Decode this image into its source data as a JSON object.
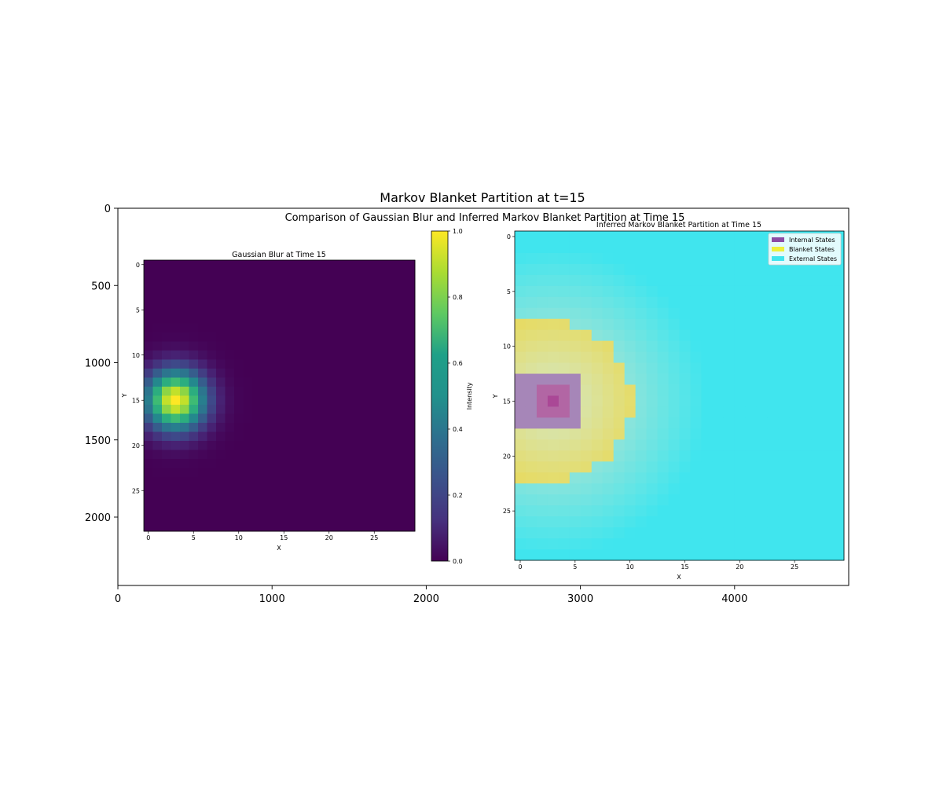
{
  "outer": {
    "title": "Markov Blanket Partition at t=15",
    "x_ticks": [
      "0",
      "1000",
      "2000",
      "3000",
      "4000"
    ],
    "y_ticks": [
      "0",
      "500",
      "1000",
      "1500",
      "2000"
    ]
  },
  "figure": {
    "suptitle": "Comparison of Gaussian Blur and Inferred Markov Blanket Partition at Time 15"
  },
  "left_panel": {
    "title": "Gaussian Blur at Time 15",
    "xlabel": "X",
    "ylabel": "Y",
    "x_ticks": [
      "0",
      "5",
      "10",
      "15",
      "20",
      "25"
    ],
    "y_ticks": [
      "0",
      "5",
      "10",
      "15",
      "20",
      "25"
    ]
  },
  "colorbar": {
    "label": "Intensity",
    "ticks": [
      "0.0",
      "0.2",
      "0.4",
      "0.6",
      "0.8",
      "1.0"
    ]
  },
  "right_panel": {
    "title": "Inferred Markov Blanket Partition at Time 15",
    "xlabel": "X",
    "ylabel": "Y",
    "x_ticks": [
      "0",
      "5",
      "10",
      "15",
      "20",
      "25"
    ],
    "y_ticks": [
      "0",
      "5",
      "10",
      "15",
      "20",
      "25"
    ],
    "legend": [
      {
        "label": "Internal States",
        "color": "#8b4ca6"
      },
      {
        "label": "Blanket States",
        "color": "#eef03c"
      },
      {
        "label": "External States",
        "color": "#40e5ee"
      }
    ]
  },
  "chart_data": [
    {
      "type": "heatmap",
      "title": "Gaussian Blur at Time 15",
      "xlabel": "X",
      "ylabel": "Y",
      "grid_size": [
        30,
        30
      ],
      "colormap": "viridis",
      "colorbar_label": "Intensity",
      "vmin": 0.0,
      "vmax": 1.0,
      "peak": {
        "x": 3,
        "y": 15,
        "value": 1.0
      },
      "sigma": 2.3,
      "xlim": [
        -0.5,
        29.5
      ],
      "ylim": [
        29.5,
        -0.5
      ]
    },
    {
      "type": "heatmap",
      "title": "Inferred Markov Blanket Partition at Time 15",
      "xlabel": "X",
      "ylabel": "Y",
      "grid_size": [
        30,
        30
      ],
      "categories": [
        "Internal States",
        "Blanket States",
        "External States"
      ],
      "center": {
        "x": 3,
        "y": 15
      },
      "internal_region": {
        "x": [
          0,
          5
        ],
        "y": [
          13,
          17
        ]
      },
      "blanket_rows": [
        {
          "y": [
            8,
            8
          ],
          "x": [
            0,
            4
          ]
        },
        {
          "y": [
            9,
            9
          ],
          "x": [
            0,
            6
          ]
        },
        {
          "y": [
            10,
            11
          ],
          "x": [
            0,
            8
          ]
        },
        {
          "y": [
            12,
            13
          ],
          "x": [
            0,
            9
          ]
        },
        {
          "y": [
            14,
            16
          ],
          "x": [
            0,
            10
          ]
        },
        {
          "y": [
            17,
            18
          ],
          "x": [
            0,
            9
          ]
        },
        {
          "y": [
            19,
            20
          ],
          "x": [
            0,
            8
          ]
        },
        {
          "y": [
            21,
            21
          ],
          "x": [
            0,
            6
          ]
        },
        {
          "y": [
            22,
            22
          ],
          "x": [
            0,
            4
          ]
        }
      ],
      "xlim": [
        -0.5,
        29.5
      ],
      "ylim": [
        29.5,
        -0.5
      ]
    }
  ]
}
